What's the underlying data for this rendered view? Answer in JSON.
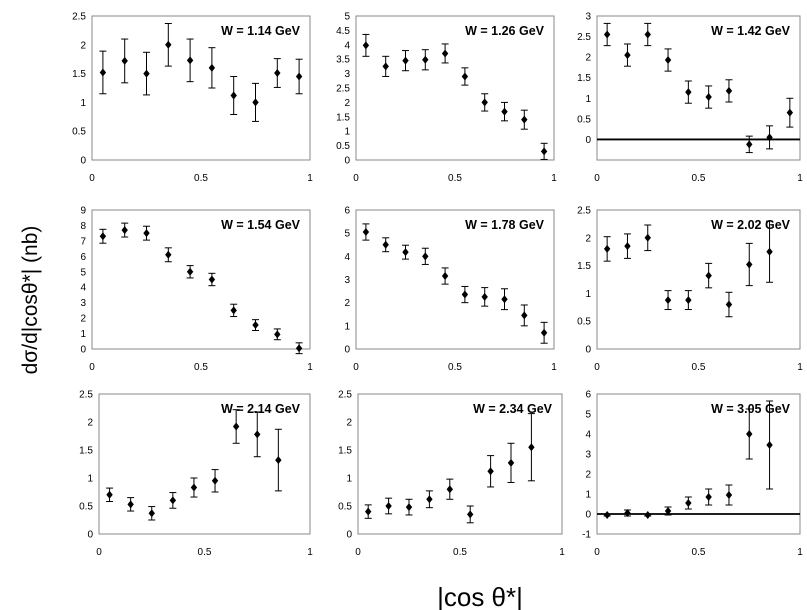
{
  "figure": {
    "ylabel": "dσ/d|cosθ*| (nb)",
    "xlabel": "|cos θ*|"
  },
  "chart_data": [
    {
      "type": "scatter",
      "title": "W = 1.14 GeV",
      "xlim": [
        0,
        1
      ],
      "xticks": [
        "0",
        "0.5",
        "1"
      ],
      "ylim": [
        0,
        2.5
      ],
      "yticks": [
        "0",
        "0.5",
        "1",
        "1.5",
        "2",
        "2.5"
      ],
      "zero_line": false,
      "x": [
        0.05,
        0.15,
        0.25,
        0.35,
        0.45,
        0.55,
        0.65,
        0.75,
        0.85,
        0.95
      ],
      "y": [
        1.52,
        1.72,
        1.5,
        2.0,
        1.73,
        1.6,
        1.12,
        1.0,
        1.51,
        1.45
      ],
      "err": [
        0.37,
        0.38,
        0.37,
        0.37,
        0.37,
        0.35,
        0.33,
        0.33,
        0.25,
        0.3
      ]
    },
    {
      "type": "scatter",
      "title": "W = 1.26 GeV",
      "xlim": [
        0,
        1
      ],
      "xticks": [
        "0",
        "0.5",
        "1"
      ],
      "ylim": [
        0,
        5
      ],
      "yticks": [
        "0",
        "0.5",
        "1",
        "1.5",
        "2",
        "2.5",
        "3",
        "3.5",
        "4",
        "4.5",
        "5"
      ],
      "zero_line": false,
      "x": [
        0.05,
        0.15,
        0.25,
        0.35,
        0.45,
        0.55,
        0.65,
        0.75,
        0.85,
        0.95
      ],
      "y": [
        3.98,
        3.25,
        3.45,
        3.48,
        3.7,
        2.9,
        2.0,
        1.68,
        1.4,
        0.3
      ],
      "err": [
        0.38,
        0.35,
        0.35,
        0.35,
        0.33,
        0.3,
        0.3,
        0.32,
        0.33,
        0.28
      ]
    },
    {
      "type": "scatter",
      "title": "W = 1.42 GeV",
      "xlim": [
        0,
        1
      ],
      "xticks": [
        "0",
        "0.5",
        "1"
      ],
      "ylim": [
        -0.5,
        3
      ],
      "yticks": [
        "0",
        "0.5",
        "1",
        "1.5",
        "2",
        "2.5",
        "3"
      ],
      "zero_line": true,
      "x": [
        0.05,
        0.15,
        0.25,
        0.35,
        0.45,
        0.55,
        0.65,
        0.75,
        0.85,
        0.95
      ],
      "y": [
        2.55,
        2.05,
        2.55,
        1.93,
        1.15,
        1.03,
        1.18,
        -0.12,
        0.05,
        0.65
      ],
      "err": [
        0.27,
        0.27,
        0.27,
        0.27,
        0.27,
        0.27,
        0.27,
        0.2,
        0.28,
        0.35
      ]
    },
    {
      "type": "scatter",
      "title": "W = 1.54 GeV",
      "xlim": [
        0,
        1
      ],
      "xticks": [
        "0",
        "0.5",
        "1"
      ],
      "ylim": [
        0,
        9
      ],
      "yticks": [
        "0",
        "1",
        "2",
        "3",
        "4",
        "5",
        "6",
        "7",
        "8",
        "9"
      ],
      "zero_line": false,
      "x": [
        0.05,
        0.15,
        0.25,
        0.35,
        0.45,
        0.55,
        0.65,
        0.75,
        0.85,
        0.95
      ],
      "y": [
        7.3,
        7.7,
        7.5,
        6.1,
        5.0,
        4.5,
        2.5,
        1.55,
        0.95,
        0.05
      ],
      "err": [
        0.45,
        0.45,
        0.45,
        0.45,
        0.4,
        0.4,
        0.4,
        0.35,
        0.35,
        0.35
      ]
    },
    {
      "type": "scatter",
      "title": "W = 1.78 GeV",
      "xlim": [
        0,
        1
      ],
      "xticks": [
        "0",
        "0.5",
        "1"
      ],
      "ylim": [
        0,
        6
      ],
      "yticks": [
        "0",
        "1",
        "2",
        "3",
        "4",
        "5",
        "6"
      ],
      "zero_line": false,
      "x": [
        0.05,
        0.15,
        0.25,
        0.35,
        0.45,
        0.55,
        0.65,
        0.75,
        0.85,
        0.95
      ],
      "y": [
        5.05,
        4.5,
        4.18,
        4.0,
        3.15,
        2.35,
        2.25,
        2.15,
        1.45,
        0.7
      ],
      "err": [
        0.35,
        0.3,
        0.3,
        0.35,
        0.35,
        0.35,
        0.4,
        0.45,
        0.45,
        0.45
      ]
    },
    {
      "type": "scatter",
      "title": "W = 2.02 GeV",
      "xlim": [
        0,
        1
      ],
      "xticks": [
        "0",
        "0.5",
        "1"
      ],
      "ylim": [
        0,
        2.5
      ],
      "yticks": [
        "0",
        "0.5",
        "1",
        "1.5",
        "2",
        "2.5"
      ],
      "zero_line": false,
      "x": [
        0.05,
        0.15,
        0.25,
        0.35,
        0.45,
        0.55,
        0.65,
        0.75,
        0.85
      ],
      "y": [
        1.8,
        1.85,
        2.0,
        0.88,
        0.88,
        1.32,
        0.8,
        1.52,
        1.75
      ],
      "err": [
        0.22,
        0.22,
        0.23,
        0.17,
        0.17,
        0.22,
        0.22,
        0.38,
        0.55
      ]
    },
    {
      "type": "scatter",
      "title": "W = 2.14 GeV",
      "xlim": [
        0,
        1
      ],
      "xticks": [
        "0",
        "0.5",
        "1"
      ],
      "ylim": [
        0,
        2.5
      ],
      "yticks": [
        "0",
        "0.5",
        "1",
        "1.5",
        "2",
        "2.5"
      ],
      "zero_line": false,
      "x": [
        0.05,
        0.15,
        0.25,
        0.35,
        0.45,
        0.55,
        0.65,
        0.75,
        0.85
      ],
      "y": [
        0.7,
        0.53,
        0.37,
        0.6,
        0.83,
        0.95,
        1.92,
        1.78,
        1.32
      ],
      "err": [
        0.12,
        0.12,
        0.12,
        0.14,
        0.17,
        0.2,
        0.3,
        0.4,
        0.55
      ]
    },
    {
      "type": "scatter",
      "title": "W = 2.34 GeV",
      "xlim": [
        0,
        1
      ],
      "xticks": [
        "0",
        "0.5",
        "1"
      ],
      "ylim": [
        0,
        2.5
      ],
      "yticks": [
        "0",
        "0.5",
        "1",
        "1.5",
        "2",
        "2.5"
      ],
      "zero_line": false,
      "x": [
        0.05,
        0.15,
        0.25,
        0.35,
        0.45,
        0.55,
        0.65,
        0.75,
        0.85
      ],
      "y": [
        0.4,
        0.5,
        0.48,
        0.62,
        0.8,
        0.35,
        1.12,
        1.27,
        1.55
      ],
      "err": [
        0.12,
        0.14,
        0.14,
        0.15,
        0.18,
        0.15,
        0.28,
        0.35,
        0.6
      ]
    },
    {
      "type": "scatter",
      "title": "W = 3.05 GeV",
      "xlim": [
        0,
        1
      ],
      "xticks": [
        "0",
        "0.5",
        "1"
      ],
      "ylim": [
        -1,
        6
      ],
      "yticks": [
        "-1",
        "0",
        "1",
        "2",
        "3",
        "4",
        "5",
        "6"
      ],
      "zero_line": true,
      "x": [
        0.05,
        0.15,
        0.25,
        0.35,
        0.45,
        0.55,
        0.65,
        0.75,
        0.85
      ],
      "y": [
        -0.05,
        0.05,
        -0.05,
        0.15,
        0.55,
        0.85,
        0.95,
        4.0,
        3.45
      ],
      "err": [
        0.05,
        0.15,
        0.05,
        0.2,
        0.3,
        0.4,
        0.5,
        1.25,
        2.2
      ]
    }
  ]
}
